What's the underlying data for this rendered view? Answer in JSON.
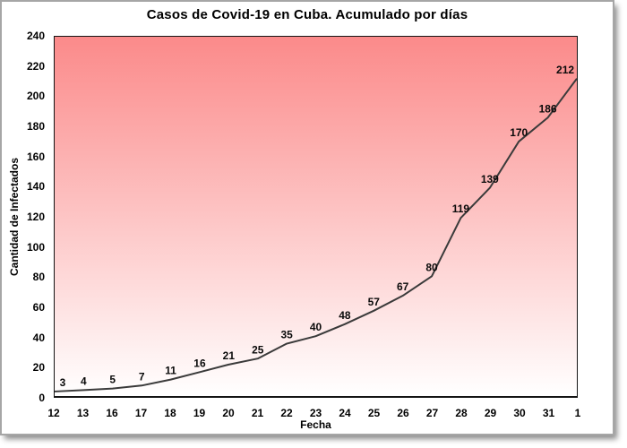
{
  "chart_data": {
    "type": "line",
    "title": "Casos de Covid-19 en Cuba. Acumulado por días",
    "xlabel": "Fecha",
    "ylabel": "Cantidad de Infectados",
    "categories": [
      "12",
      "13",
      "16",
      "17",
      "18",
      "19",
      "20",
      "21",
      "22",
      "23",
      "24",
      "25",
      "26",
      "27",
      "28",
      "29",
      "30",
      "31",
      "1"
    ],
    "values": [
      3,
      4,
      5,
      7,
      11,
      16,
      21,
      25,
      35,
      40,
      48,
      57,
      67,
      80,
      119,
      139,
      170,
      186,
      212
    ],
    "ylim": [
      0,
      240
    ],
    "ytick_step": 20,
    "grid": false,
    "legend": "none",
    "data_labels": true,
    "line_color": "#3a3a3a",
    "plot_bg_gradient_top": "#fb8a8a",
    "plot_bg_gradient_bottom": "#ffffff",
    "axis_color": "#141414"
  }
}
